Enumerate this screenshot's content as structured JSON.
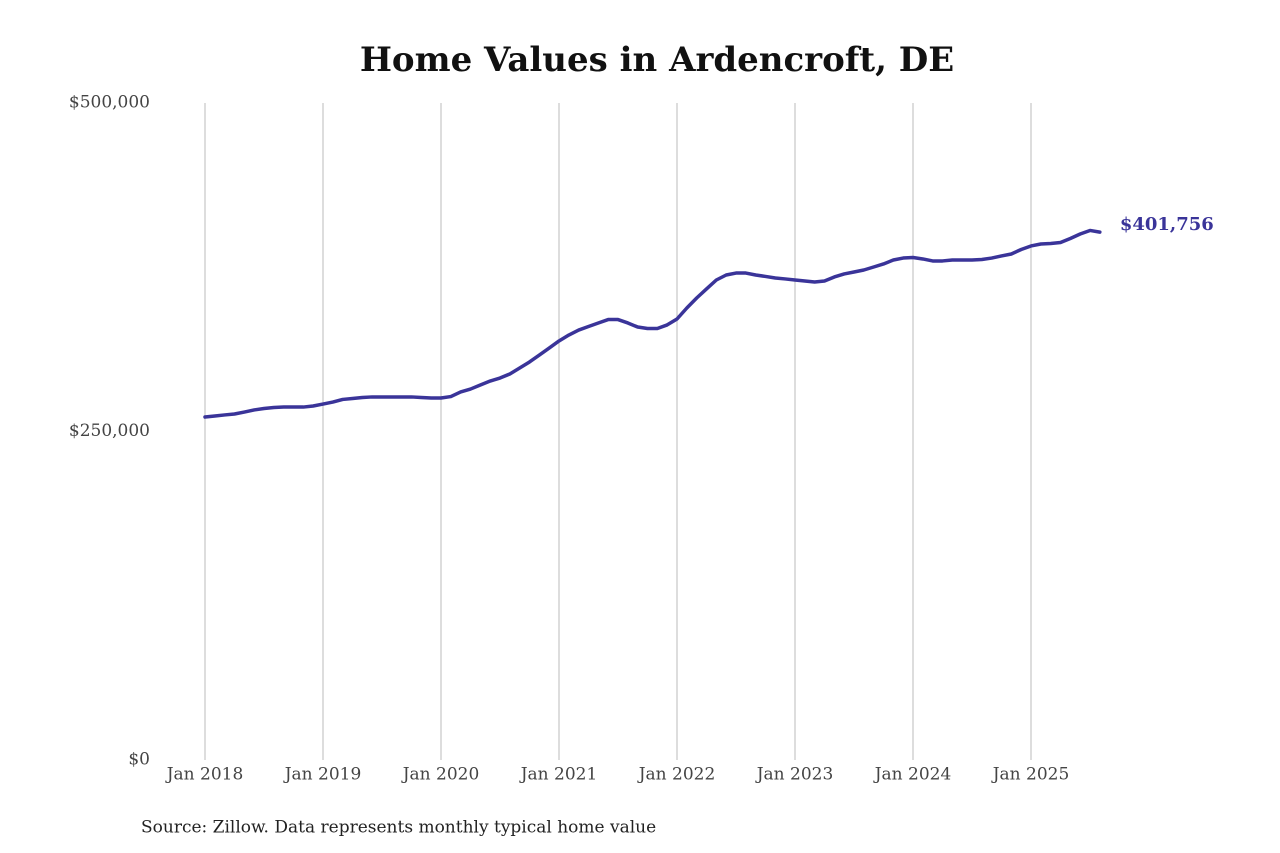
{
  "chart_data": {
    "type": "line",
    "title": "Home Values in Ardencroft, DE",
    "source": "Source: Zillow. Data represents monthly typical home value",
    "x": [
      "2018-01",
      "2018-02",
      "2018-03",
      "2018-04",
      "2018-05",
      "2018-06",
      "2018-07",
      "2018-08",
      "2018-09",
      "2018-10",
      "2018-11",
      "2018-12",
      "2019-01",
      "2019-02",
      "2019-03",
      "2019-04",
      "2019-05",
      "2019-06",
      "2019-07",
      "2019-08",
      "2019-09",
      "2019-10",
      "2019-11",
      "2019-12",
      "2020-01",
      "2020-02",
      "2020-03",
      "2020-04",
      "2020-05",
      "2020-06",
      "2020-07",
      "2020-08",
      "2020-09",
      "2020-10",
      "2020-11",
      "2020-12",
      "2021-01",
      "2021-02",
      "2021-03",
      "2021-04",
      "2021-05",
      "2021-06",
      "2021-07",
      "2021-08",
      "2021-09",
      "2021-10",
      "2021-11",
      "2021-12",
      "2022-01",
      "2022-02",
      "2022-03",
      "2022-04",
      "2022-05",
      "2022-06",
      "2022-07",
      "2022-08",
      "2022-09",
      "2022-10",
      "2022-11",
      "2022-12",
      "2023-01",
      "2023-02",
      "2023-03",
      "2023-04",
      "2023-05",
      "2023-06",
      "2023-07",
      "2023-08",
      "2023-09",
      "2023-10",
      "2023-11",
      "2023-12",
      "2024-01",
      "2024-02",
      "2024-03",
      "2024-04",
      "2024-05",
      "2024-06",
      "2024-07",
      "2024-08",
      "2024-09",
      "2024-10",
      "2024-11",
      "2024-12",
      "2025-01",
      "2025-02",
      "2025-03",
      "2025-04",
      "2025-05",
      "2025-06",
      "2025-07",
      "2025-08"
    ],
    "series": [
      {
        "name": "Typical home value",
        "color": "#3a3499",
        "values": [
          261000,
          261800,
          262600,
          263300,
          264800,
          266400,
          267500,
          268300,
          268600,
          268600,
          268600,
          269400,
          270900,
          272400,
          274400,
          275100,
          275900,
          276300,
          276300,
          276300,
          276300,
          276300,
          275900,
          275500,
          275500,
          276600,
          280100,
          282300,
          285400,
          288400,
          290700,
          293800,
          298300,
          302900,
          308200,
          313500,
          318900,
          323400,
          327200,
          329900,
          332600,
          335200,
          335200,
          332600,
          329500,
          328400,
          328400,
          331100,
          335600,
          344000,
          351600,
          358500,
          365300,
          369100,
          370600,
          370600,
          369100,
          368000,
          366800,
          366100,
          365300,
          364500,
          363800,
          364500,
          367600,
          369900,
          371400,
          372900,
          375200,
          377500,
          380500,
          382000,
          382400,
          381300,
          379800,
          379800,
          380500,
          380500,
          380500,
          380900,
          382000,
          383600,
          385100,
          388500,
          391200,
          392700,
          393100,
          393800,
          396900,
          400300,
          403000,
          401756
        ],
        "value_labels": [
          null,
          null,
          null,
          null,
          null,
          null,
          null,
          null,
          null,
          null,
          null,
          null,
          null,
          null,
          null,
          null,
          null,
          null,
          null,
          null,
          null,
          null,
          null,
          null,
          null,
          null,
          null,
          null,
          null,
          null,
          null,
          null,
          null,
          null,
          null,
          null,
          null,
          null,
          null,
          null,
          null,
          null,
          null,
          null,
          null,
          null,
          null,
          null,
          null,
          null,
          null,
          null,
          null,
          null,
          null,
          null,
          null,
          null,
          null,
          null,
          null,
          null,
          null,
          null,
          null,
          null,
          null,
          null,
          null,
          null,
          null,
          null,
          null,
          null,
          null,
          null,
          null,
          null,
          null,
          null,
          null,
          null,
          null,
          null,
          null,
          null,
          null,
          null,
          null,
          null,
          null,
          "$401,756"
        ]
      }
    ],
    "ylim": [
      0,
      500000
    ],
    "yticks": [
      {
        "value": 0,
        "label": "$0"
      },
      {
        "value": 250000,
        "label": "$250,000"
      },
      {
        "value": 500000,
        "label": "$500,000"
      }
    ],
    "xticks": [
      {
        "value": "2018-01",
        "label": "Jan 2018"
      },
      {
        "value": "2019-01",
        "label": "Jan 2019"
      },
      {
        "value": "2020-01",
        "label": "Jan 2020"
      },
      {
        "value": "2021-01",
        "label": "Jan 2021"
      },
      {
        "value": "2022-01",
        "label": "Jan 2022"
      },
      {
        "value": "2023-01",
        "label": "Jan 2023"
      },
      {
        "value": "2024-01",
        "label": "Jan 2024"
      },
      {
        "value": "2025-01",
        "label": "Jan 2025"
      }
    ],
    "grid": "x"
  }
}
